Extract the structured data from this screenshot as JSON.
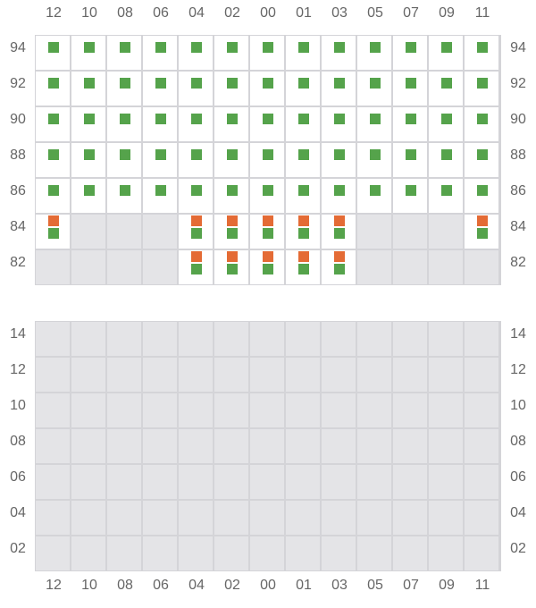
{
  "columns": [
    "12",
    "10",
    "08",
    "06",
    "04",
    "02",
    "00",
    "01",
    "03",
    "05",
    "07",
    "09",
    "11"
  ],
  "colors": {
    "green": "#55a34b",
    "orange": "#e46b35",
    "disabled": "#e4e4e7",
    "enabled": "#ffffff"
  },
  "top_grid": {
    "rows": [
      {
        "label": "94",
        "cells": [
          "g",
          "g",
          "g",
          "g",
          "g",
          "g",
          "g",
          "g",
          "g",
          "g",
          "g",
          "g",
          "g"
        ]
      },
      {
        "label": "92",
        "cells": [
          "g",
          "g",
          "g",
          "g",
          "g",
          "g",
          "g",
          "g",
          "g",
          "g",
          "g",
          "g",
          "g"
        ]
      },
      {
        "label": "90",
        "cells": [
          "g",
          "g",
          "g",
          "g",
          "g",
          "g",
          "g",
          "g",
          "g",
          "g",
          "g",
          "g",
          "g"
        ]
      },
      {
        "label": "88",
        "cells": [
          "g",
          "g",
          "g",
          "g",
          "g",
          "g",
          "g",
          "g",
          "g",
          "g",
          "g",
          "g",
          "g"
        ]
      },
      {
        "label": "86",
        "cells": [
          "g",
          "g",
          "g",
          "g",
          "g",
          "g",
          "g",
          "g",
          "g",
          "g",
          "g",
          "g",
          "g"
        ]
      },
      {
        "label": "84",
        "cells": [
          "og",
          "off",
          "off",
          "off",
          "og",
          "og",
          "og",
          "og",
          "og",
          "off",
          "off",
          "off",
          "og"
        ]
      },
      {
        "label": "82",
        "cells": [
          "off",
          "off",
          "off",
          "off",
          "og",
          "og",
          "og",
          "og",
          "og",
          "off",
          "off",
          "off",
          "off"
        ]
      }
    ]
  },
  "bottom_grid": {
    "rows": [
      {
        "label": "14",
        "cells": [
          "off",
          "off",
          "off",
          "off",
          "off",
          "off",
          "off",
          "off",
          "off",
          "off",
          "off",
          "off",
          "off"
        ]
      },
      {
        "label": "12",
        "cells": [
          "off",
          "off",
          "off",
          "off",
          "off",
          "off",
          "off",
          "off",
          "off",
          "off",
          "off",
          "off",
          "off"
        ]
      },
      {
        "label": "10",
        "cells": [
          "off",
          "off",
          "off",
          "off",
          "off",
          "off",
          "off",
          "off",
          "off",
          "off",
          "off",
          "off",
          "off"
        ]
      },
      {
        "label": "08",
        "cells": [
          "off",
          "off",
          "off",
          "off",
          "off",
          "off",
          "off",
          "off",
          "off",
          "off",
          "off",
          "off",
          "off"
        ]
      },
      {
        "label": "06",
        "cells": [
          "off",
          "off",
          "off",
          "off",
          "off",
          "off",
          "off",
          "off",
          "off",
          "off",
          "off",
          "off",
          "off"
        ]
      },
      {
        "label": "04",
        "cells": [
          "off",
          "off",
          "off",
          "off",
          "off",
          "off",
          "off",
          "off",
          "off",
          "off",
          "off",
          "off",
          "off"
        ]
      },
      {
        "label": "02",
        "cells": [
          "off",
          "off",
          "off",
          "off",
          "off",
          "off",
          "off",
          "off",
          "off",
          "off",
          "off",
          "off",
          "off"
        ]
      }
    ]
  }
}
